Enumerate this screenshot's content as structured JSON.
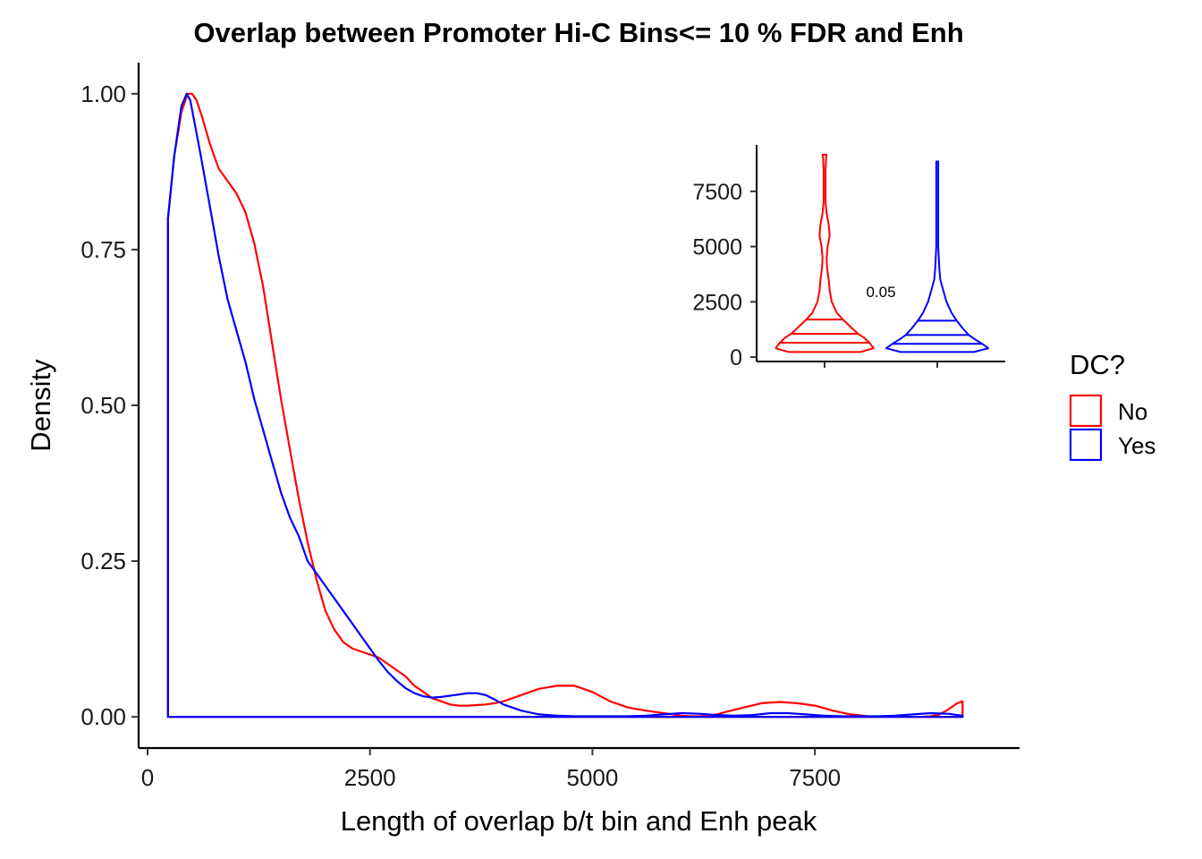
{
  "chart_data": [
    {
      "type": "area",
      "title": "Overlap between Promoter Hi-C Bins<= 10 % FDR and Enh",
      "xlabel": "Length of overlap b/t bin and Enh peak",
      "ylabel": "Density",
      "xlim": [
        -100,
        9800
      ],
      "ylim": [
        -0.05,
        1.05
      ],
      "x_ticks": [
        0,
        2500,
        5000,
        7500
      ],
      "x_tick_labels": [
        "0",
        "2500",
        "5000",
        "7500"
      ],
      "y_ticks": [
        0,
        0.25,
        0.5,
        0.75,
        1
      ],
      "y_tick_labels": [
        "0.00",
        "0.25",
        "0.50",
        "0.75",
        "1.00"
      ],
      "grid": false,
      "series": [
        {
          "name": "No",
          "color": "#ff0000",
          "x": [
            230,
            300,
            380,
            450,
            500,
            550,
            620,
            700,
            800,
            900,
            1000,
            1100,
            1200,
            1300,
            1400,
            1500,
            1600,
            1700,
            1800,
            1900,
            2000,
            2100,
            2200,
            2300,
            2400,
            2500,
            2600,
            2700,
            2800,
            2900,
            3000,
            3100,
            3200,
            3300,
            3400,
            3500,
            3600,
            3700,
            3800,
            3900,
            4000,
            4200,
            4400,
            4600,
            4800,
            5000,
            5200,
            5400,
            5600,
            5800,
            5900,
            6000,
            6100,
            6200,
            6300,
            6400,
            6500,
            6700,
            6900,
            7100,
            7300,
            7500,
            7700,
            7900,
            8100,
            8300,
            8500,
            8700,
            8800,
            8900,
            9000,
            9100,
            9160
          ],
          "values": [
            0.8,
            0.9,
            0.97,
            1.0,
            1.0,
            0.99,
            0.96,
            0.92,
            0.88,
            0.86,
            0.84,
            0.81,
            0.76,
            0.69,
            0.6,
            0.51,
            0.43,
            0.35,
            0.28,
            0.22,
            0.17,
            0.14,
            0.12,
            0.11,
            0.105,
            0.1,
            0.095,
            0.085,
            0.075,
            0.065,
            0.05,
            0.04,
            0.03,
            0.025,
            0.02,
            0.018,
            0.018,
            0.019,
            0.02,
            0.022,
            0.025,
            0.035,
            0.045,
            0.05,
            0.05,
            0.04,
            0.025,
            0.015,
            0.01,
            0.006,
            0.004,
            0.002,
            0.001,
            0.001,
            0.002,
            0.004,
            0.008,
            0.015,
            0.022,
            0.024,
            0.022,
            0.018,
            0.01,
            0.004,
            0.001,
            0.0,
            0.0,
            0.0,
            0.001,
            0.004,
            0.012,
            0.022,
            0.025
          ]
        },
        {
          "name": "Yes",
          "color": "#0000ff",
          "x": [
            230,
            300,
            380,
            440,
            480,
            520,
            600,
            700,
            800,
            900,
            1000,
            1100,
            1200,
            1300,
            1400,
            1500,
            1600,
            1700,
            1800,
            1900,
            2000,
            2100,
            2200,
            2300,
            2400,
            2500,
            2600,
            2700,
            2800,
            2900,
            3000,
            3100,
            3200,
            3300,
            3400,
            3500,
            3600,
            3700,
            3800,
            3900,
            4000,
            4200,
            4400,
            4600,
            4800,
            5000,
            5200,
            5400,
            5600,
            5800,
            6000,
            6200,
            6400,
            6600,
            6800,
            7000,
            7200,
            7400,
            7600,
            7800,
            8000,
            8200,
            8400,
            8600,
            8800,
            9000,
            9160
          ],
          "values": [
            0.8,
            0.9,
            0.98,
            1.0,
            0.99,
            0.96,
            0.9,
            0.82,
            0.74,
            0.67,
            0.62,
            0.57,
            0.51,
            0.46,
            0.41,
            0.36,
            0.32,
            0.29,
            0.25,
            0.23,
            0.21,
            0.19,
            0.17,
            0.15,
            0.13,
            0.11,
            0.09,
            0.072,
            0.058,
            0.046,
            0.038,
            0.033,
            0.031,
            0.032,
            0.034,
            0.036,
            0.038,
            0.038,
            0.035,
            0.028,
            0.02,
            0.01,
            0.004,
            0.002,
            0.001,
            0.001,
            0.001,
            0.001,
            0.002,
            0.004,
            0.006,
            0.005,
            0.003,
            0.002,
            0.003,
            0.006,
            0.006,
            0.004,
            0.002,
            0.001,
            0.001,
            0.001,
            0.002,
            0.004,
            0.006,
            0.005,
            0.002
          ]
        }
      ],
      "legend": {
        "title": "DC?",
        "position": "right",
        "entries": [
          {
            "label": "No",
            "color": "#ff0000"
          },
          {
            "label": "Yes",
            "color": "#0000ff"
          }
        ]
      }
    },
    {
      "type": "violin",
      "position": "top-right inset",
      "ylim": [
        -200,
        9600
      ],
      "y_ticks": [
        0,
        2500,
        5000,
        7500
      ],
      "y_tick_labels": [
        "0",
        "2500",
        "5000",
        "7500"
      ],
      "annotation": "0.05",
      "series": [
        {
          "name": "No",
          "color": "#ff0000",
          "min": 230,
          "max": 9160,
          "quantiles": [
            650,
            1050,
            1700
          ],
          "y": [
            230,
            400,
            650,
            900,
            1050,
            1300,
            1700,
            2000,
            2500,
            3000,
            3500,
            4000,
            4500,
            5000,
            5500,
            6000,
            6500,
            7000,
            7500,
            8000,
            8500,
            9000,
            9160
          ],
          "width": [
            0.7,
            0.96,
            0.88,
            0.76,
            0.66,
            0.54,
            0.36,
            0.24,
            0.14,
            0.1,
            0.08,
            0.05,
            0.04,
            0.06,
            0.1,
            0.08,
            0.04,
            0.02,
            0.02,
            0.02,
            0.02,
            0.03,
            0.04
          ]
        },
        {
          "name": "Yes",
          "color": "#0000ff",
          "min": 230,
          "max": 8850,
          "quantiles": [
            600,
            1000,
            1650
          ],
          "y": [
            230,
            400,
            600,
            800,
            1000,
            1300,
            1650,
            2000,
            2500,
            3000,
            3500,
            4000,
            4500,
            5000,
            5500,
            6000,
            6500,
            7000,
            7500,
            8000,
            8500,
            8850
          ],
          "width": [
            0.72,
            1.0,
            0.88,
            0.74,
            0.62,
            0.5,
            0.38,
            0.28,
            0.18,
            0.12,
            0.06,
            0.04,
            0.03,
            0.02,
            0.02,
            0.02,
            0.02,
            0.02,
            0.02,
            0.02,
            0.02,
            0.02
          ]
        }
      ]
    }
  ]
}
